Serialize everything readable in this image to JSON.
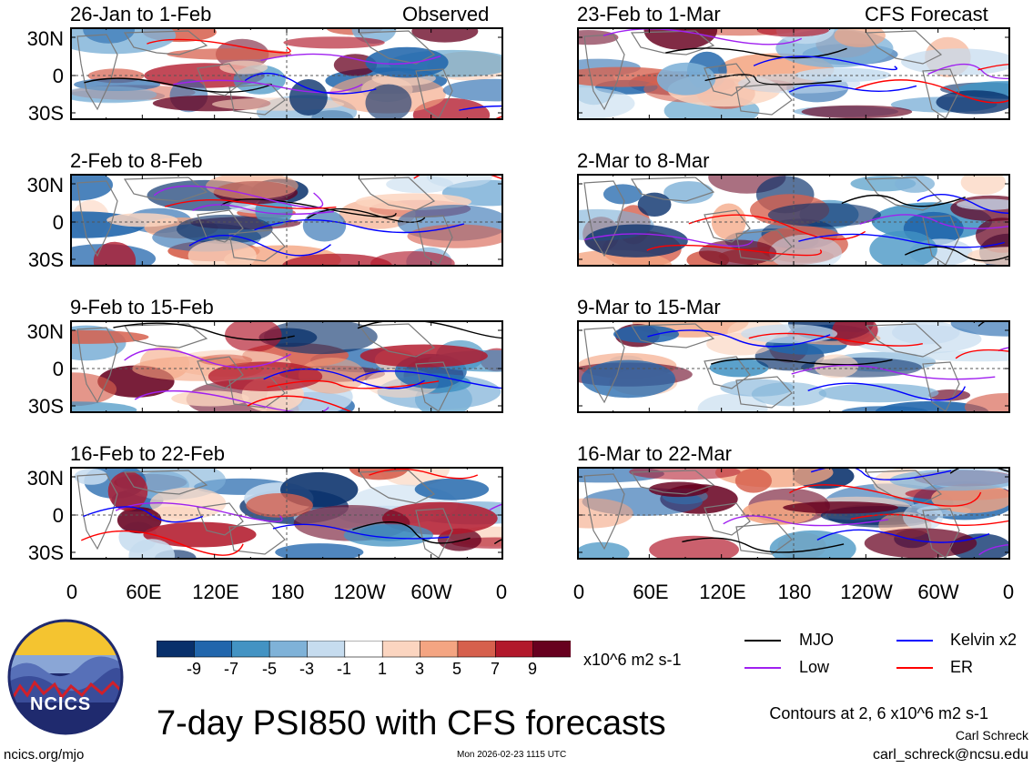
{
  "title": "7-day PSI850 with CFS forecasts",
  "left_header_label": "Observed",
  "right_header_label": "CFS Forecast",
  "footer": {
    "url": "ncics.org/mjo",
    "timestamp": "Mon 2026-02-23 1115 UTC",
    "author": "Carl Schreck",
    "email": "carl_schreck@ncsu.edu",
    "contours_note": "Contours at 2, 6 x10^6 m2 s-1"
  },
  "logo_text": "NCICS",
  "colorbar": {
    "unit": "x10^6 m2 s-1",
    "tick_labels": [
      "-9",
      "-7",
      "-5",
      "-3",
      "-1",
      "1",
      "3",
      "5",
      "7",
      "9"
    ],
    "colors": [
      "#08306b",
      "#2166ac",
      "#4393c3",
      "#7fb2d8",
      "#c6dcef",
      "#ffffff",
      "#fbd5c0",
      "#f4a582",
      "#d6604d",
      "#b2182b",
      "#67001f"
    ]
  },
  "legend": [
    {
      "label": "MJO",
      "color": "#000000"
    },
    {
      "label": "Kelvin x2",
      "color": "#0000ff"
    },
    {
      "label": "Low",
      "color": "#a020f0"
    },
    {
      "label": "ER",
      "color": "#ff0000"
    }
  ],
  "chart_data": {
    "type": "heatmap",
    "variable": "7-day PSI850 anomaly with filtered-wave contours",
    "x_tick_labels": [
      "0",
      "60E",
      "120E",
      "180",
      "120W",
      "60W",
      "0"
    ],
    "y_tick_labels": [
      "30N",
      "0",
      "30S"
    ],
    "panels": [
      {
        "column": "Observed",
        "period": "26-Jan to 1-Feb"
      },
      {
        "column": "Observed",
        "period": "2-Feb to 8-Feb"
      },
      {
        "column": "Observed",
        "period": "9-Feb to 15-Feb"
      },
      {
        "column": "Observed",
        "period": "16-Feb to 22-Feb"
      },
      {
        "column": "CFS Forecast",
        "period": "23-Feb to 1-Mar"
      },
      {
        "column": "CFS Forecast",
        "period": "2-Mar to 8-Mar"
      },
      {
        "column": "CFS Forecast",
        "period": "9-Mar to 15-Mar"
      },
      {
        "column": "CFS Forecast",
        "period": "16-Mar to 22-Mar"
      }
    ]
  }
}
